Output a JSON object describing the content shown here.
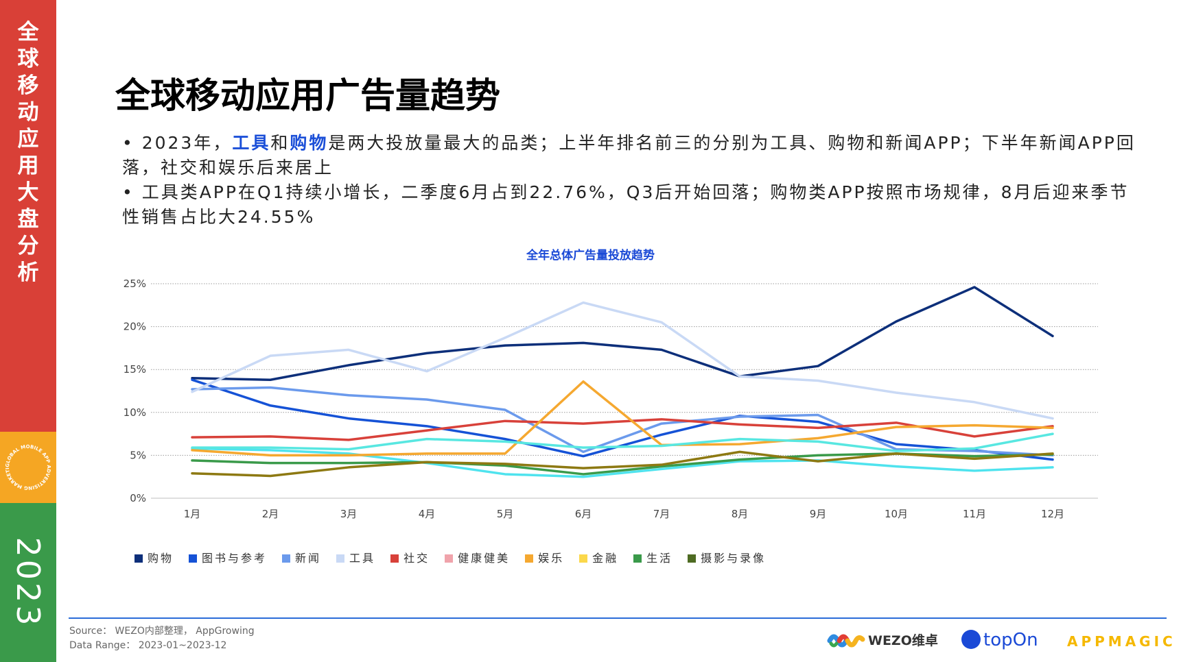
{
  "sidebar": {
    "title": "全球移动应用大盘分析",
    "badge_text": "GLOBAL MOBILE APP ADVERTISING MARKETING",
    "year": "2023"
  },
  "title": "全球移动应用广告量趋势",
  "bullets": {
    "b1_part1": "• 2023年，",
    "b1_hl1": "工具",
    "b1_and": "和",
    "b1_hl2": "购物",
    "b1_rest": "是两大投放量最大的品类；上半年排名前三的分别为工具、购物和新闻APP；下半年新闻APP回落，社交和娱乐后来居上",
    "b2": "• 工具类APP在Q1持续小增长，二季度6月占到22.76%，Q3后开始回落；购物类APP按照市场规律，8月后迎来季节性销售占比大24.55%"
  },
  "chart_data": {
    "type": "line",
    "title": "全年总体广告量投放趋势",
    "categories": [
      "1月",
      "2月",
      "3月",
      "4月",
      "5月",
      "6月",
      "7月",
      "8月",
      "9月",
      "10月",
      "11月",
      "12月"
    ],
    "y_ticks": [
      "0%",
      "5%",
      "10%",
      "15%",
      "20%",
      "25%"
    ],
    "ylim": [
      0,
      25
    ],
    "xlabel": "",
    "ylabel": "",
    "grid": true,
    "legend_position": "bottom",
    "series": [
      {
        "name": "购物",
        "color": "#0d2f7a",
        "values": [
          14.0,
          13.8,
          15.5,
          16.9,
          17.8,
          18.1,
          17.3,
          14.2,
          15.4,
          20.6,
          24.6,
          18.9
        ]
      },
      {
        "name": "图书与参考",
        "color": "#1552d6",
        "values": [
          13.8,
          10.8,
          9.3,
          8.4,
          6.9,
          4.9,
          7.4,
          9.6,
          8.9,
          6.3,
          5.6,
          4.5
        ]
      },
      {
        "name": "新闻",
        "color": "#6b9aec",
        "values": [
          12.7,
          12.9,
          12.0,
          11.5,
          10.3,
          5.4,
          8.7,
          9.5,
          9.7,
          5.7,
          5.5,
          5.0
        ]
      },
      {
        "name": "工具",
        "color": "#c9d9f5",
        "values": [
          12.4,
          16.6,
          17.3,
          14.8,
          18.7,
          22.8,
          20.5,
          14.2,
          13.7,
          12.3,
          11.2,
          9.3
        ]
      },
      {
        "name": "社交",
        "color": "#d8413a",
        "values": [
          7.1,
          7.2,
          6.8,
          7.9,
          9.0,
          8.7,
          9.2,
          8.6,
          8.2,
          8.8,
          7.2,
          8.4
        ]
      },
      {
        "name": "健康健美",
        "color": "#f0a3ab",
        "values": [
          5.8,
          5.6,
          5.2,
          4.1,
          2.8,
          2.5,
          3.4,
          4.3,
          4.4,
          3.7,
          3.2,
          3.6
        ]
      },
      {
        "name": "娱乐",
        "color": "#f5a830",
        "values": [
          5.6,
          5.0,
          5.0,
          5.2,
          5.2,
          13.6,
          6.2,
          6.3,
          7.0,
          8.3,
          8.5,
          8.2
        ]
      },
      {
        "name": "金融",
        "color": "#fbd84b",
        "values": [
          5.9,
          5.9,
          5.7,
          6.9,
          6.6,
          5.9,
          6.1,
          6.9,
          6.6,
          5.5,
          5.8,
          7.5
        ]
      },
      {
        "name": "生活",
        "color": "#3a9a4a",
        "values": [
          4.4,
          4.1,
          4.1,
          4.2,
          3.8,
          2.8,
          3.7,
          4.5,
          5.0,
          5.2,
          4.9,
          5.1
        ]
      },
      {
        "name": "摄影与录像",
        "color": "#4e6b22",
        "values": [
          2.9,
          2.6,
          3.6,
          4.2,
          4.0,
          3.5,
          3.9,
          5.4,
          4.3,
          5.2,
          4.6,
          5.2
        ]
      }
    ],
    "line_overrides": {
      "健康健美": "#4fe3ee",
      "金融": "#58e7e1",
      "摄影与录像": "#8d7912"
    }
  },
  "footer": {
    "source": "Source： WEZO内部整理， AppGrowing",
    "range": "Data Range： 2023-01~2023-12"
  },
  "logos": {
    "wezo": "WEZO维卓",
    "topon": "topOn",
    "appmagic": "APPMAGIC"
  }
}
